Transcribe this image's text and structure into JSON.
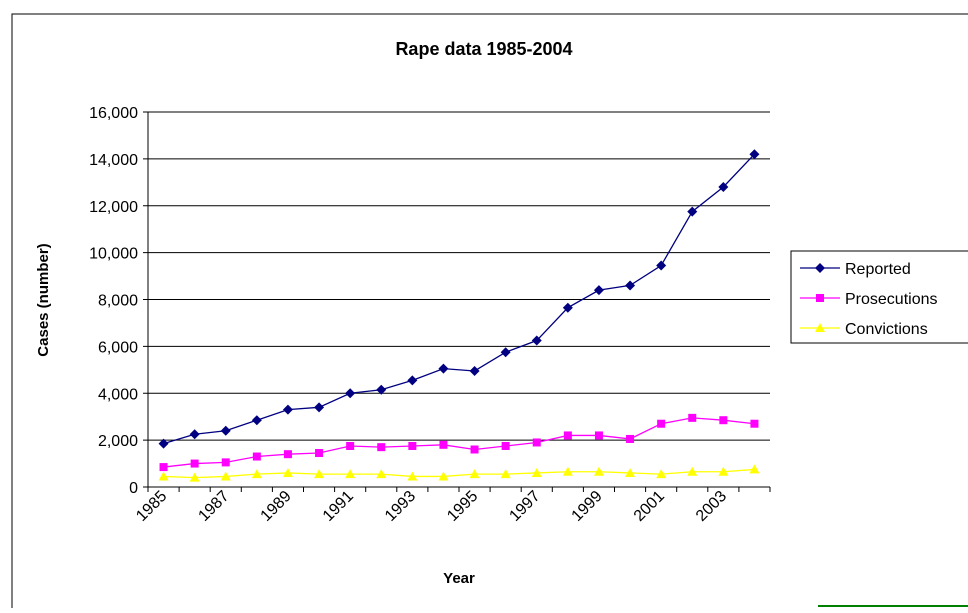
{
  "chart_data": {
    "type": "line",
    "title": "Rape data 1985-2004",
    "xlabel": "Year",
    "ylabel": "Cases (number)",
    "ylim": [
      0,
      16000
    ],
    "y_ticks": [
      "0",
      "2,000",
      "4,000",
      "6,000",
      "8,000",
      "10,000",
      "12,000",
      "14,000",
      "16,000"
    ],
    "x_tick_labels": [
      "1985",
      "1987",
      "1989",
      "1991",
      "1993",
      "1995",
      "1997",
      "1999",
      "2001",
      "2003"
    ],
    "x": [
      1985,
      1986,
      1987,
      1988,
      1989,
      1990,
      1991,
      1992,
      1993,
      1994,
      1995,
      1996,
      1997,
      1998,
      1999,
      2000,
      2001,
      2002,
      2003,
      2004
    ],
    "grid": true,
    "legend_position": "right",
    "series": [
      {
        "name": "Reported",
        "color": "#000080",
        "marker": "diamond",
        "values": [
          1850,
          2250,
          2400,
          2850,
          3300,
          3400,
          4000,
          4150,
          4550,
          5050,
          4950,
          5750,
          6250,
          7650,
          8400,
          8600,
          9450,
          11750,
          12800,
          14200
        ]
      },
      {
        "name": "Prosecutions",
        "color": "#ff00ff",
        "marker": "square",
        "values": [
          850,
          1000,
          1050,
          1300,
          1400,
          1450,
          1750,
          1700,
          1750,
          1800,
          1600,
          1750,
          1900,
          2200,
          2200,
          2050,
          2700,
          2950,
          2850,
          2700
        ]
      },
      {
        "name": "Convictions",
        "color": "#ffff00",
        "marker": "triangle",
        "values": [
          450,
          400,
          450,
          550,
          600,
          550,
          550,
          550,
          450,
          450,
          550,
          550,
          600,
          650,
          650,
          600,
          550,
          650,
          650,
          750
        ]
      }
    ]
  }
}
